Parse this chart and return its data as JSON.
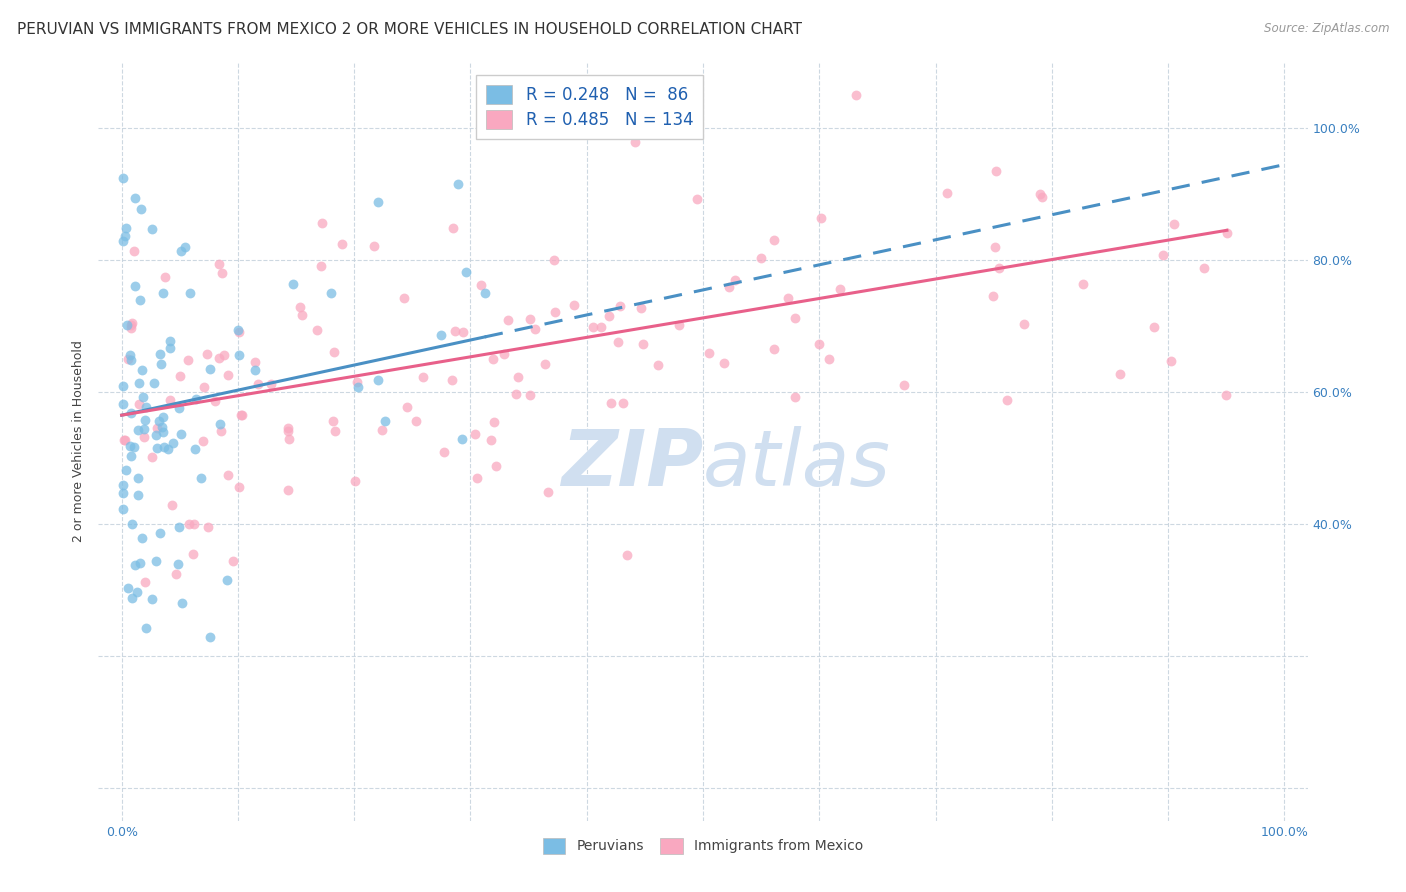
{
  "title": "PERUVIAN VS IMMIGRANTS FROM MEXICO 2 OR MORE VEHICLES IN HOUSEHOLD CORRELATION CHART",
  "source": "Source: ZipAtlas.com",
  "ylabel": "2 or more Vehicles in Household",
  "xlim": [
    -0.02,
    1.02
  ],
  "ylim": [
    -0.05,
    1.1
  ],
  "x_tick_positions": [
    0.0,
    0.1,
    0.2,
    0.3,
    0.4,
    0.5,
    0.6,
    0.7,
    0.8,
    0.9,
    1.0
  ],
  "x_tick_labels": [
    "0.0%",
    "",
    "",
    "",
    "",
    "",
    "",
    "",
    "",
    "",
    "100.0%"
  ],
  "y_tick_positions": [
    0.0,
    0.2,
    0.4,
    0.6,
    0.8,
    1.0
  ],
  "y_right_labels": [
    "",
    "",
    "40.0%",
    "60.0%",
    "80.0%",
    "100.0%"
  ],
  "peruvian_R": 0.248,
  "peruvian_N": 86,
  "mexico_R": 0.485,
  "mexico_N": 134,
  "blue_color": "#7bbde4",
  "pink_color": "#f9a8c0",
  "blue_line_color": "#4a90c4",
  "pink_line_color": "#e8608a",
  "legend_text_color": "#2060b0",
  "watermark_color": "#d0dff0",
  "background_color": "#ffffff",
  "grid_color": "#c8d4de",
  "title_fontsize": 11,
  "axis_label_fontsize": 9,
  "tick_fontsize": 9,
  "legend_fontsize": 12,
  "right_tick_color": "#3a80c0",
  "blue_line_intercept": 0.565,
  "blue_line_slope": 0.38,
  "pink_line_intercept": 0.565,
  "pink_line_slope": 0.295
}
